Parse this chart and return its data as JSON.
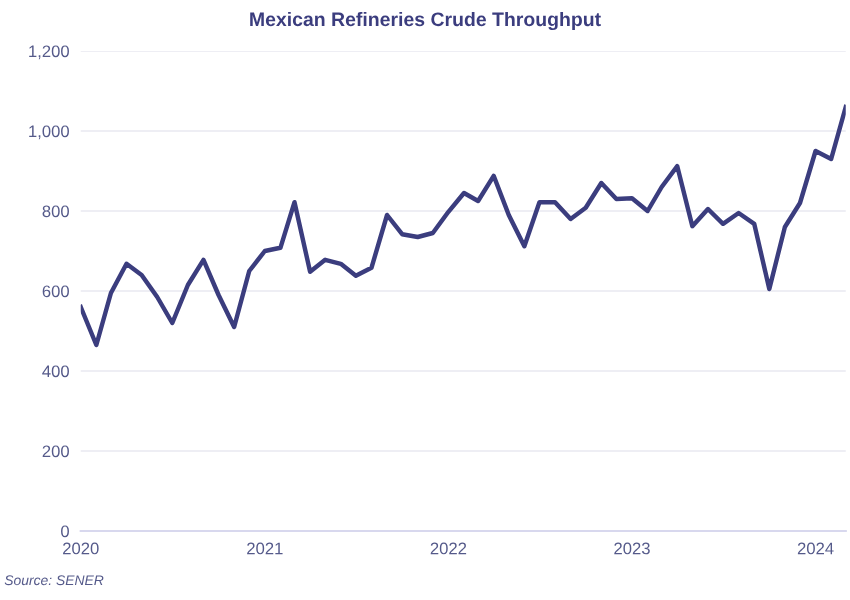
{
  "chart_data": {
    "type": "line",
    "title": "Mexican Refineries Crude Throughput",
    "x": [
      "2020-01",
      "2020-02",
      "2020-03",
      "2020-04",
      "2020-05",
      "2020-06",
      "2020-07",
      "2020-08",
      "2020-09",
      "2020-10",
      "2020-11",
      "2020-12",
      "2021-01",
      "2021-02",
      "2021-03",
      "2021-04",
      "2021-05",
      "2021-06",
      "2021-07",
      "2021-08",
      "2021-09",
      "2021-10",
      "2021-11",
      "2021-12",
      "2022-01",
      "2022-02",
      "2022-03",
      "2022-04",
      "2022-05",
      "2022-06",
      "2022-07",
      "2022-08",
      "2022-09",
      "2022-10",
      "2022-11",
      "2022-12",
      "2023-01",
      "2023-02",
      "2023-03",
      "2023-04",
      "2023-05",
      "2023-06",
      "2023-07",
      "2023-08",
      "2023-09",
      "2023-10",
      "2023-11",
      "2023-12",
      "2024-01",
      "2024-02",
      "2024-03"
    ],
    "series": [
      {
        "color": "#3b3d7e",
        "values": [
          560,
          465,
          595,
          668,
          640,
          585,
          520,
          615,
          678,
          590,
          510,
          650,
          700,
          708,
          822,
          648,
          678,
          668,
          638,
          658,
          790,
          742,
          735,
          745,
          798,
          845,
          825,
          888,
          790,
          712,
          822,
          822,
          780,
          808,
          870,
          830,
          832,
          800,
          860,
          912,
          762,
          805,
          768,
          795,
          768,
          605,
          760,
          820,
          950,
          930,
          1060
        ]
      }
    ],
    "xlim": [
      "2020-01",
      "2024-03"
    ],
    "xticks": [
      "2020",
      "2021",
      "2022",
      "2023",
      "2024"
    ],
    "ylim": [
      0,
      1200
    ],
    "yticks": [
      {
        "value": 0,
        "label": "0"
      },
      {
        "value": 200,
        "label": "200"
      },
      {
        "value": 400,
        "label": "400"
      },
      {
        "value": 600,
        "label": "600"
      },
      {
        "value": 800,
        "label": "800"
      },
      {
        "value": 1000,
        "label": "1,000"
      },
      {
        "value": 1200,
        "label": "1,200"
      }
    ],
    "grid": "y",
    "legend": false,
    "marker": "none",
    "line_style": "solid",
    "annotations": [
      "Source: SENER"
    ]
  }
}
